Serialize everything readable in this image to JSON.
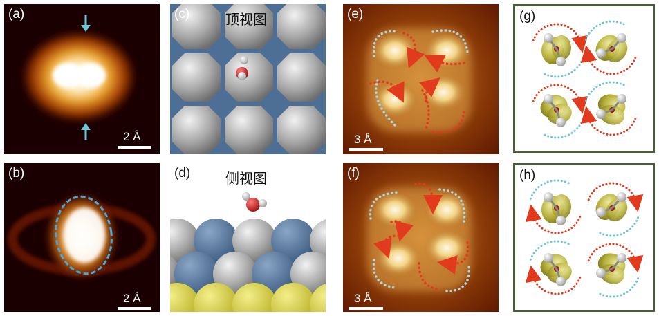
{
  "panels": {
    "a": {
      "label": "(a)",
      "scale": "2 Å"
    },
    "b": {
      "label": "(b)",
      "scale": "2 Å"
    },
    "c": {
      "label": "(c)",
      "title": "顶视图"
    },
    "d": {
      "label": "(d)",
      "title": "侧视图"
    },
    "e": {
      "label": "(e)",
      "scale": "3 Å"
    },
    "f": {
      "label": "(f)",
      "scale": "3 Å"
    },
    "g": {
      "label": "(g)"
    },
    "h": {
      "label": "(h)"
    }
  },
  "colors": {
    "stm_dark": "#1a0000",
    "stm_mid": "#8a2a05",
    "stm_bright": "#fff6d8",
    "arrow_blue": "#6ec6d6",
    "arrow_red": "#e23a1c",
    "dashed_blue": "#4aa6dc",
    "atom_gray": "#b4b4b4",
    "atom_blue": "#4d6e95",
    "atom_yellow": "#d9d24a",
    "oxygen_red": "#c81e1e",
    "orbital_olive": "#b3b33a",
    "frame_green": "#4a5d3a"
  }
}
